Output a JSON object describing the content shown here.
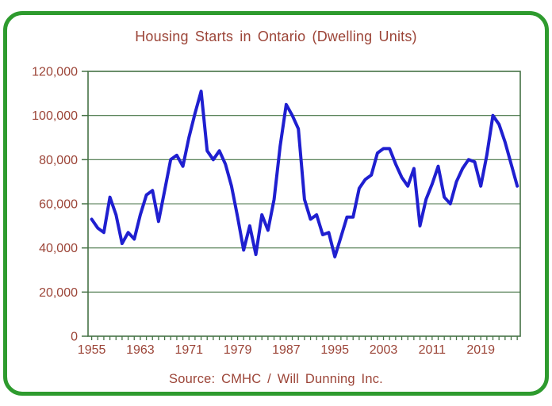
{
  "chart_data": {
    "type": "line",
    "title": "Housing Starts in Ontario (Dwelling Units)",
    "source": "Source: CMHC / Will Dunning Inc.",
    "xlabel": "",
    "ylabel": "",
    "x": [
      1955,
      1956,
      1957,
      1958,
      1959,
      1960,
      1961,
      1962,
      1963,
      1964,
      1965,
      1966,
      1967,
      1968,
      1969,
      1970,
      1971,
      1972,
      1973,
      1974,
      1975,
      1976,
      1977,
      1978,
      1979,
      1980,
      1981,
      1982,
      1983,
      1984,
      1985,
      1986,
      1987,
      1988,
      1989,
      1990,
      1991,
      1992,
      1993,
      1994,
      1995,
      1996,
      1997,
      1998,
      1999,
      2000,
      2001,
      2002,
      2003,
      2004,
      2005,
      2006,
      2007,
      2008,
      2009,
      2010,
      2011,
      2012,
      2013,
      2014,
      2015,
      2016,
      2017,
      2018,
      2019,
      2020,
      2021,
      2022,
      2023,
      2024,
      2025
    ],
    "values": [
      53000,
      49000,
      47000,
      63000,
      55000,
      42000,
      47000,
      44000,
      55000,
      64000,
      66000,
      52000,
      66000,
      80000,
      82000,
      77000,
      90000,
      101000,
      111000,
      84000,
      80000,
      84000,
      78000,
      68000,
      54000,
      39000,
      50000,
      37000,
      55000,
      48000,
      62000,
      86000,
      105000,
      100000,
      94000,
      62000,
      53000,
      55000,
      46000,
      47000,
      36000,
      45000,
      54000,
      54000,
      67000,
      71000,
      73000,
      83000,
      85000,
      85000,
      78000,
      72000,
      68000,
      76000,
      50000,
      62000,
      69000,
      77000,
      63000,
      60000,
      70000,
      76000,
      80000,
      79000,
      68000,
      82000,
      100000,
      96000,
      88000,
      78000,
      68000
    ],
    "ylim": [
      0,
      120000
    ],
    "xlim": [
      1954.4,
      2025.5
    ],
    "y_ticks": [
      {
        "value": 0,
        "label": "0"
      },
      {
        "value": 20000,
        "label": "20,000"
      },
      {
        "value": 40000,
        "label": "40,000"
      },
      {
        "value": 60000,
        "label": "60,000"
      },
      {
        "value": 80000,
        "label": "80,000"
      },
      {
        "value": 100000,
        "label": "100,000"
      },
      {
        "value": 120000,
        "label": "120,000"
      }
    ],
    "x_tick_labels": [
      {
        "value": 1955,
        "label": "1955"
      },
      {
        "value": 1963,
        "label": "1963"
      },
      {
        "value": 1971,
        "label": "1971"
      },
      {
        "value": 1979,
        "label": "1979"
      },
      {
        "value": 1987,
        "label": "1987"
      },
      {
        "value": 1995,
        "label": "1995"
      },
      {
        "value": 2003,
        "label": "2003"
      },
      {
        "value": 2011,
        "label": "2011"
      },
      {
        "value": 2019,
        "label": "2019"
      }
    ],
    "minor_x_ticks_every_year": true,
    "grid": "horizontal",
    "legend": "none",
    "colors": {
      "line": "#1f1fd0",
      "grid": "#457245",
      "text": "#9c4538",
      "frame": "#2e9b2e",
      "background": "#ffffff"
    }
  }
}
